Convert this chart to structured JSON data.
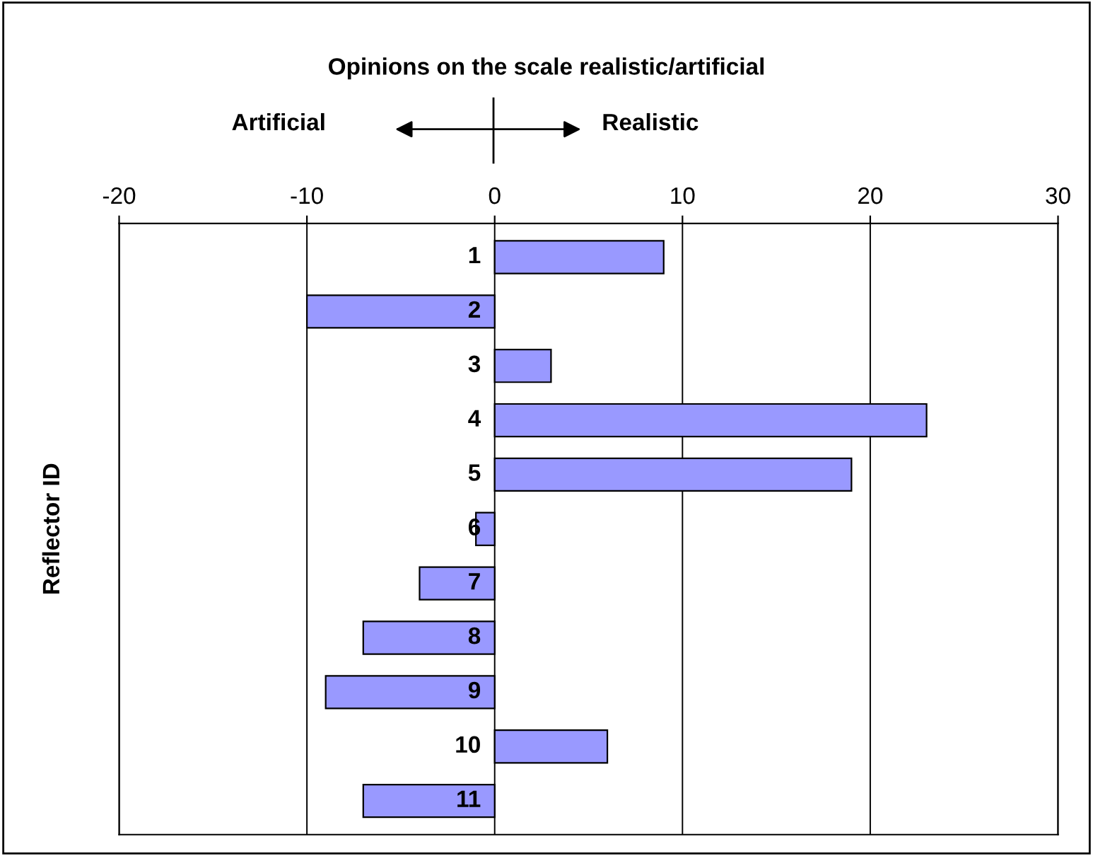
{
  "chart_data": {
    "type": "bar",
    "orientation": "horizontal",
    "title": "Opinions on the scale realistic/artificial",
    "ylabel": "Reflector ID",
    "annotations": [
      "Artificial",
      "Realistic"
    ],
    "categories": [
      "1",
      "2",
      "3",
      "4",
      "5",
      "6",
      "7",
      "8",
      "9",
      "10",
      "11"
    ],
    "values": [
      9,
      -10,
      3,
      23,
      19,
      -1,
      -4,
      -7,
      -9,
      6,
      -7
    ],
    "color": "#9999ff",
    "xlim": [
      -20,
      30
    ],
    "xticks": [
      -20,
      -10,
      0,
      10,
      20,
      30
    ],
    "grid": "x",
    "legend": false
  }
}
